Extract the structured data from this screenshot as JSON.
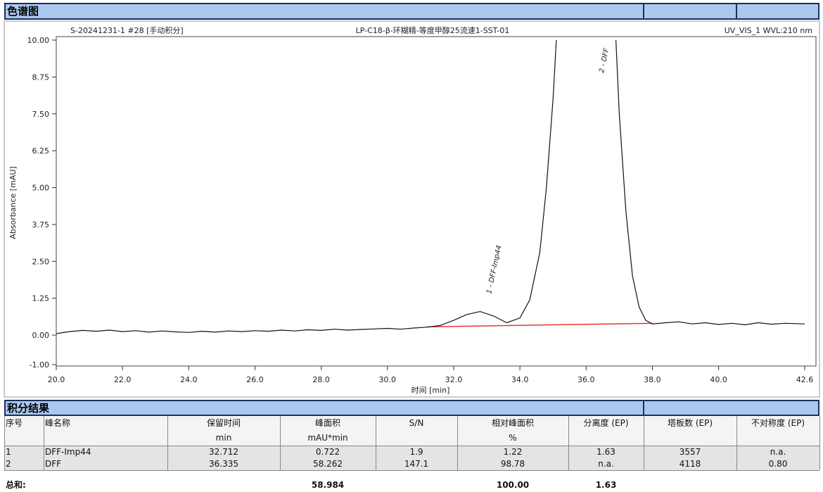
{
  "section_title": "色谱图",
  "chart_data": {
    "type": "line",
    "header": {
      "sample": "S-20241231-1 #28 [手动积分]",
      "method": "LP-C18-β-环糊精-等度甲醇25流速1-SST-01",
      "channel": "UV_VIS_1 WVL:210 nm"
    },
    "xlabel": "时间 [min]",
    "ylabel": "Absorbance [mAU]",
    "xlim": [
      20,
      42.6
    ],
    "ylim": [
      -1,
      10
    ],
    "xticks": [
      {
        "value": 20,
        "label": "20.0"
      },
      {
        "value": 22,
        "label": "22.0"
      },
      {
        "value": 24,
        "label": "24.0"
      },
      {
        "value": 26,
        "label": "26.0"
      },
      {
        "value": 28,
        "label": "28.0"
      },
      {
        "value": 30,
        "label": "30.0"
      },
      {
        "value": 32,
        "label": "32.0"
      },
      {
        "value": 34,
        "label": "34.0"
      },
      {
        "value": 36,
        "label": "36.0"
      },
      {
        "value": 38,
        "label": "38.0"
      },
      {
        "value": 40,
        "label": "40.0"
      },
      42.6
    ],
    "yticks": [
      {
        "value": -1,
        "label": "-1.00"
      },
      {
        "value": 0,
        "label": "0.00"
      },
      1.25,
      {
        "value": 2.5,
        "label": "2.50"
      },
      3.75,
      {
        "value": 5,
        "label": "5.00"
      },
      6.25,
      {
        "value": 7.5,
        "label": "7.50"
      },
      8.75,
      {
        "value": 10,
        "label": "10.00"
      }
    ],
    "x": [
      20.0,
      20.4,
      20.8,
      21.2,
      21.6,
      22.0,
      22.4,
      22.8,
      23.2,
      23.6,
      24.0,
      24.4,
      24.8,
      25.2,
      25.6,
      26.0,
      26.4,
      26.8,
      27.2,
      27.6,
      28.0,
      28.4,
      28.8,
      29.2,
      29.6,
      30.0,
      30.4,
      30.8,
      31.2,
      31.6,
      32.0,
      32.4,
      32.8,
      33.2,
      33.6,
      34.0,
      34.3,
      34.6,
      34.8,
      35.0,
      35.1,
      36.0,
      36.9,
      37.0,
      37.2,
      37.4,
      37.6,
      37.8,
      38.0,
      38.4,
      38.8,
      39.2,
      39.6,
      40.0,
      40.4,
      40.8,
      41.2,
      41.6,
      42.0,
      42.6
    ],
    "series": [
      {
        "color": "#111111",
        "values": [
          0.05,
          0.12,
          0.16,
          0.13,
          0.17,
          0.12,
          0.15,
          0.1,
          0.14,
          0.11,
          0.09,
          0.13,
          0.1,
          0.14,
          0.12,
          0.15,
          0.13,
          0.17,
          0.14,
          0.18,
          0.16,
          0.2,
          0.17,
          0.19,
          0.21,
          0.23,
          0.2,
          0.24,
          0.27,
          0.33,
          0.5,
          0.7,
          0.8,
          0.65,
          0.42,
          0.58,
          1.2,
          2.8,
          5.0,
          8.0,
          10.0,
          null,
          10.0,
          7.5,
          4.2,
          2.0,
          0.95,
          0.5,
          0.38,
          0.42,
          0.45,
          0.38,
          0.42,
          0.36,
          0.4,
          0.35,
          0.42,
          0.37,
          0.4,
          0.38
        ]
      }
    ],
    "baseline": {
      "color": "#e8372f",
      "x": [
        31.2,
        38.0
      ],
      "values": [
        0.28,
        0.4
      ]
    },
    "annotations": [
      "1 - DFF-Imp44",
      "2 - DFF"
    ]
  },
  "table": {
    "title": "积分结果",
    "headers": [
      "序号",
      "峰名称",
      "保留时间",
      "峰面积",
      "S/N",
      "相对峰面积",
      "分离度 (EP)",
      "塔板数 (EP)",
      "不对称度 (EP)"
    ],
    "units": {
      "retention": "min",
      "area": "mAU*min",
      "relative_area": "%"
    },
    "rows": [
      [
        "1",
        "DFF-Imp44",
        "32.712",
        "0.722",
        "1.9",
        "1.22",
        "1.63",
        "3557",
        "n.a."
      ],
      [
        "2",
        "DFF",
        "36.335",
        "58.262",
        "147.1",
        "98.78",
        "n.a.",
        "4118",
        "0.80"
      ]
    ],
    "total": {
      "label": "总和:",
      "area": "58.984",
      "relative_area": "100.00",
      "resolution": "1.63"
    }
  }
}
